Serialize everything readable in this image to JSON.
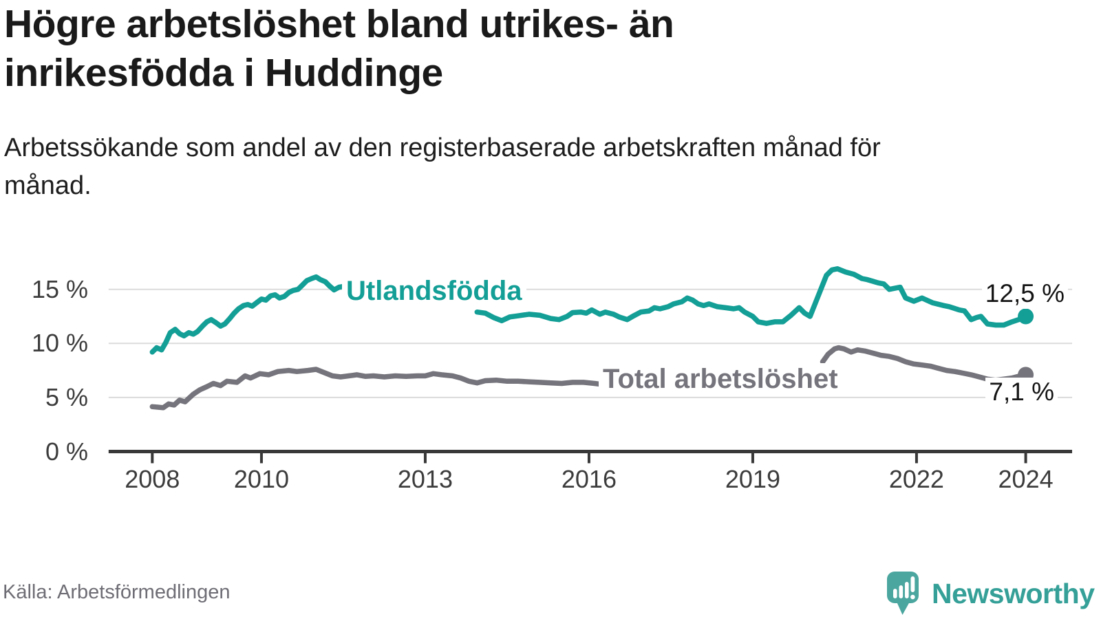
{
  "header": {
    "title": "Högre arbetslöshet bland utrikes- än inrikesfödda i Huddinge",
    "subtitle": "Arbetssökande som andel av den registerbaserade arbetskraften månad för månad."
  },
  "chart_data": {
    "type": "line",
    "unit": "%",
    "grid": "horizontal",
    "x_axis_range": [
      2007.2,
      2024.85
    ],
    "ylim": [
      0,
      18
    ],
    "x_ticks": [
      2008,
      2010,
      2013,
      2016,
      2019,
      2022,
      2024
    ],
    "y_ticks": [
      0,
      5,
      10,
      15
    ],
    "y_tick_labels": [
      "0 %",
      "5 %",
      "10 %",
      "15 %"
    ],
    "colors": {
      "grid": "#dbdbdb",
      "axis": "#383838",
      "tick_text": "#3c3c3c"
    },
    "series": [
      {
        "name": "Utlandsfödda",
        "color": "#139e96",
        "end_label": "12,5 %",
        "end_value": 12.5,
        "segments": [
          [
            [
              2008.0,
              9.2
            ],
            [
              2008.08,
              9.6
            ],
            [
              2008.17,
              9.4
            ],
            [
              2008.25,
              10.1
            ],
            [
              2008.33,
              11.0
            ],
            [
              2008.42,
              11.3
            ],
            [
              2008.5,
              10.9
            ],
            [
              2008.58,
              10.7
            ],
            [
              2008.67,
              11.0
            ],
            [
              2008.75,
              10.85
            ],
            [
              2008.83,
              11.1
            ],
            [
              2008.92,
              11.6
            ],
            [
              2009.0,
              12.0
            ],
            [
              2009.08,
              12.2
            ],
            [
              2009.17,
              11.9
            ],
            [
              2009.25,
              11.6
            ],
            [
              2009.33,
              11.8
            ],
            [
              2009.42,
              12.3
            ],
            [
              2009.5,
              12.8
            ],
            [
              2009.58,
              13.2
            ],
            [
              2009.67,
              13.5
            ],
            [
              2009.75,
              13.6
            ],
            [
              2009.83,
              13.45
            ],
            [
              2009.92,
              13.8
            ],
            [
              2010.0,
              14.1
            ],
            [
              2010.08,
              14.0
            ],
            [
              2010.17,
              14.4
            ],
            [
              2010.25,
              14.5
            ],
            [
              2010.33,
              14.2
            ],
            [
              2010.42,
              14.35
            ],
            [
              2010.5,
              14.7
            ],
            [
              2010.58,
              14.9
            ],
            [
              2010.67,
              15.0
            ],
            [
              2010.75,
              15.4
            ],
            [
              2010.83,
              15.8
            ],
            [
              2010.92,
              16.0
            ],
            [
              2011.0,
              16.15
            ],
            [
              2011.08,
              15.9
            ],
            [
              2011.17,
              15.7
            ],
            [
              2011.25,
              15.3
            ],
            [
              2011.33,
              14.95
            ],
            [
              2011.42,
              15.2
            ],
            [
              2011.54,
              15.3
            ]
          ],
          [
            [
              2013.95,
              12.9
            ],
            [
              2014.1,
              12.8
            ],
            [
              2014.25,
              12.4
            ],
            [
              2014.4,
              12.1
            ],
            [
              2014.55,
              12.45
            ],
            [
              2014.7,
              12.55
            ],
            [
              2014.9,
              12.7
            ],
            [
              2015.1,
              12.6
            ],
            [
              2015.3,
              12.3
            ],
            [
              2015.45,
              12.2
            ],
            [
              2015.6,
              12.5
            ],
            [
              2015.7,
              12.85
            ],
            [
              2015.85,
              12.9
            ],
            [
              2015.95,
              12.8
            ],
            [
              2016.05,
              13.1
            ],
            [
              2016.2,
              12.7
            ],
            [
              2016.3,
              12.9
            ],
            [
              2016.45,
              12.7
            ],
            [
              2016.55,
              12.45
            ],
            [
              2016.7,
              12.2
            ],
            [
              2016.8,
              12.5
            ],
            [
              2016.95,
              12.9
            ],
            [
              2017.1,
              13.0
            ],
            [
              2017.2,
              13.3
            ],
            [
              2017.3,
              13.2
            ],
            [
              2017.45,
              13.4
            ],
            [
              2017.55,
              13.65
            ],
            [
              2017.7,
              13.85
            ],
            [
              2017.8,
              14.2
            ],
            [
              2017.9,
              14.0
            ],
            [
              2018.0,
              13.65
            ],
            [
              2018.1,
              13.5
            ],
            [
              2018.2,
              13.65
            ],
            [
              2018.35,
              13.4
            ],
            [
              2018.5,
              13.3
            ],
            [
              2018.65,
              13.2
            ],
            [
              2018.75,
              13.3
            ],
            [
              2018.85,
              12.9
            ],
            [
              2019.0,
              12.5
            ],
            [
              2019.1,
              12.0
            ],
            [
              2019.25,
              11.85
            ],
            [
              2019.4,
              12.0
            ],
            [
              2019.55,
              12.0
            ],
            [
              2019.7,
              12.6
            ],
            [
              2019.85,
              13.3
            ],
            [
              2019.95,
              12.8
            ],
            [
              2020.05,
              12.5
            ],
            [
              2020.2,
              14.4
            ],
            [
              2020.35,
              16.3
            ],
            [
              2020.45,
              16.8
            ],
            [
              2020.55,
              16.9
            ],
            [
              2020.7,
              16.6
            ],
            [
              2020.85,
              16.4
            ],
            [
              2021.0,
              16.0
            ],
            [
              2021.1,
              15.9
            ],
            [
              2021.3,
              15.6
            ],
            [
              2021.4,
              15.5
            ],
            [
              2021.5,
              15.0
            ],
            [
              2021.7,
              15.2
            ],
            [
              2021.8,
              14.2
            ],
            [
              2021.95,
              13.9
            ],
            [
              2022.1,
              14.2
            ],
            [
              2022.3,
              13.75
            ],
            [
              2022.5,
              13.5
            ],
            [
              2022.6,
              13.4
            ],
            [
              2022.78,
              13.1
            ],
            [
              2022.88,
              13.0
            ],
            [
              2023.0,
              12.2
            ],
            [
              2023.1,
              12.4
            ],
            [
              2023.18,
              12.5
            ],
            [
              2023.3,
              11.8
            ],
            [
              2023.45,
              11.7
            ],
            [
              2023.6,
              11.7
            ],
            [
              2023.75,
              12.0
            ],
            [
              2023.87,
              12.2
            ],
            [
              2024.0,
              12.5
            ]
          ]
        ]
      },
      {
        "name": "Total arbetslöshet",
        "color": "#75747c",
        "end_label": "7,1 %",
        "end_value": 7.1,
        "segments": [
          [
            [
              2008.0,
              4.15
            ],
            [
              2008.1,
              4.1
            ],
            [
              2008.2,
              4.05
            ],
            [
              2008.3,
              4.4
            ],
            [
              2008.4,
              4.3
            ],
            [
              2008.5,
              4.75
            ],
            [
              2008.6,
              4.6
            ],
            [
              2008.75,
              5.3
            ],
            [
              2008.87,
              5.7
            ],
            [
              2009.0,
              6.0
            ],
            [
              2009.12,
              6.3
            ],
            [
              2009.25,
              6.1
            ],
            [
              2009.37,
              6.5
            ],
            [
              2009.55,
              6.4
            ],
            [
              2009.7,
              7.0
            ],
            [
              2009.8,
              6.8
            ],
            [
              2009.97,
              7.2
            ],
            [
              2010.13,
              7.1
            ],
            [
              2010.3,
              7.4
            ],
            [
              2010.5,
              7.5
            ],
            [
              2010.65,
              7.4
            ],
            [
              2010.85,
              7.5
            ],
            [
              2011.0,
              7.6
            ],
            [
              2011.15,
              7.3
            ],
            [
              2011.3,
              7.0
            ],
            [
              2011.45,
              6.9
            ],
            [
              2011.6,
              7.0
            ],
            [
              2011.75,
              7.1
            ],
            [
              2011.9,
              6.95
            ],
            [
              2012.05,
              7.0
            ],
            [
              2012.25,
              6.9
            ],
            [
              2012.45,
              7.0
            ],
            [
              2012.65,
              6.95
            ],
            [
              2012.85,
              7.0
            ],
            [
              2013.0,
              7.0
            ],
            [
              2013.15,
              7.2
            ],
            [
              2013.3,
              7.1
            ],
            [
              2013.5,
              7.0
            ],
            [
              2013.65,
              6.8
            ],
            [
              2013.8,
              6.5
            ],
            [
              2013.95,
              6.35
            ],
            [
              2014.1,
              6.55
            ],
            [
              2014.3,
              6.6
            ],
            [
              2014.5,
              6.5
            ],
            [
              2014.7,
              6.5
            ],
            [
              2014.9,
              6.45
            ],
            [
              2015.1,
              6.4
            ],
            [
              2015.3,
              6.35
            ],
            [
              2015.5,
              6.3
            ],
            [
              2015.7,
              6.4
            ],
            [
              2015.9,
              6.4
            ],
            [
              2016.1,
              6.3
            ],
            [
              2016.25,
              6.2
            ]
          ],
          [
            [
              2020.28,
              8.3
            ],
            [
              2020.38,
              9.0
            ],
            [
              2020.5,
              9.5
            ],
            [
              2020.57,
              9.6
            ],
            [
              2020.67,
              9.5
            ],
            [
              2020.8,
              9.2
            ],
            [
              2020.92,
              9.4
            ],
            [
              2021.05,
              9.3
            ],
            [
              2021.2,
              9.1
            ],
            [
              2021.35,
              8.9
            ],
            [
              2021.5,
              8.8
            ],
            [
              2021.65,
              8.6
            ],
            [
              2021.8,
              8.3
            ],
            [
              2021.95,
              8.1
            ],
            [
              2022.1,
              8.0
            ],
            [
              2022.25,
              7.9
            ],
            [
              2022.4,
              7.7
            ],
            [
              2022.55,
              7.5
            ],
            [
              2022.7,
              7.4
            ],
            [
              2022.85,
              7.25
            ],
            [
              2023.0,
              7.1
            ],
            [
              2023.15,
              6.9
            ],
            [
              2023.3,
              6.7
            ],
            [
              2023.45,
              6.6
            ],
            [
              2023.6,
              6.7
            ],
            [
              2023.75,
              6.8
            ],
            [
              2023.9,
              7.0
            ],
            [
              2024.0,
              7.1
            ]
          ]
        ]
      }
    ]
  },
  "footer": {
    "source": "Källa: Arbetsförmedlingen",
    "brand": "Newsworthy"
  }
}
